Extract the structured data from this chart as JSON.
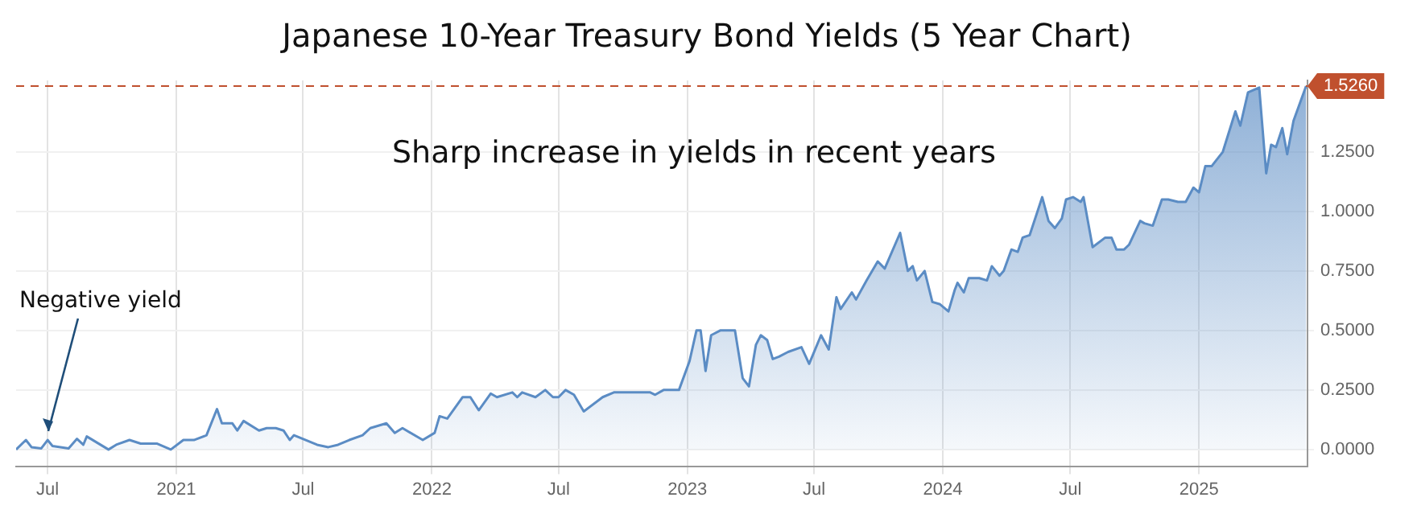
{
  "chart_data": {
    "type": "area",
    "title": "Japanese 10-Year Treasury Bond Yields (5 Year Chart)",
    "annotations": [
      "Sharp increase in yields in recent years",
      {
        "text": "Negative yield",
        "x": "2020-07-01",
        "y": 0.04
      }
    ],
    "x": [
      "2020-05-17",
      "2020-05-31",
      "2020-06-08",
      "2020-06-22",
      "2020-07-01",
      "2020-07-08",
      "2020-07-31",
      "2020-08-12",
      "2020-08-21",
      "2020-08-26",
      "2020-09-26",
      "2020-10-07",
      "2020-10-26",
      "2020-11-11",
      "2020-12-04",
      "2020-12-24",
      "2021-01-11",
      "2021-01-26",
      "2021-02-13",
      "2021-02-28",
      "2021-03-07",
      "2021-03-22",
      "2021-03-29",
      "2021-04-07",
      "2021-04-29",
      "2021-05-10",
      "2021-05-23",
      "2021-06-03",
      "2021-06-12",
      "2021-06-18",
      "2021-07-21",
      "2021-08-06",
      "2021-08-20",
      "2021-09-05",
      "2021-09-24",
      "2021-10-05",
      "2021-10-28",
      "2021-11-09",
      "2021-11-20",
      "2021-12-19",
      "2022-01-05",
      "2022-01-12",
      "2022-01-23",
      "2022-02-14",
      "2022-02-25",
      "2022-03-09",
      "2022-03-26",
      "2022-04-04",
      "2022-04-26",
      "2022-05-03",
      "2022-05-10",
      "2022-05-29",
      "2022-06-12",
      "2022-06-23",
      "2022-07-01",
      "2022-07-11",
      "2022-07-23",
      "2022-08-06",
      "2022-09-02",
      "2022-09-18",
      "2022-10-11",
      "2022-11-09",
      "2022-11-16",
      "2022-11-28",
      "2022-12-20",
      "2023-01-04",
      "2023-01-14",
      "2023-01-20",
      "2023-01-27",
      "2023-02-04",
      "2023-02-17",
      "2023-03-10",
      "2023-03-21",
      "2023-03-30",
      "2023-04-09",
      "2023-04-16",
      "2023-04-25",
      "2023-05-03",
      "2023-05-12",
      "2023-05-25",
      "2023-06-13",
      "2023-06-24",
      "2023-07-11",
      "2023-07-22",
      "2023-08-02",
      "2023-08-08",
      "2023-08-24",
      "2023-08-30",
      "2023-09-14",
      "2023-09-30",
      "2023-10-10",
      "2023-11-01",
      "2023-11-12",
      "2023-11-19",
      "2023-11-25",
      "2023-12-06",
      "2023-12-17",
      "2023-12-28",
      "2024-01-09",
      "2024-01-18",
      "2024-01-22",
      "2024-01-31",
      "2024-02-07",
      "2024-02-22",
      "2024-03-04",
      "2024-03-11",
      "2024-03-22",
      "2024-03-28",
      "2024-04-08",
      "2024-04-17",
      "2024-04-24",
      "2024-05-04",
      "2024-05-22",
      "2024-05-31",
      "2024-06-09",
      "2024-06-19",
      "2024-06-25",
      "2024-07-05",
      "2024-07-16",
      "2024-07-20",
      "2024-08-02",
      "2024-08-20",
      "2024-08-29",
      "2024-09-05",
      "2024-09-16",
      "2024-09-23",
      "2024-10-09",
      "2024-10-15",
      "2024-10-27",
      "2024-11-09",
      "2024-11-18",
      "2024-12-02",
      "2024-12-13",
      "2024-12-24",
      "2025-01-01",
      "2025-01-10",
      "2025-01-19",
      "2025-02-04",
      "2025-02-22",
      "2025-03-01",
      "2025-03-12",
      "2025-03-28",
      "2025-04-07",
      "2025-04-14",
      "2025-04-21",
      "2025-04-30",
      "2025-05-07",
      "2025-05-16",
      "2025-06-03"
    ],
    "series": [
      {
        "color": "#5b8cc4",
        "values": [
          0,
          0.04,
          0.01,
          0.005,
          0.04,
          0.015,
          0.005,
          0.045,
          0.02,
          0.055,
          0,
          0.02,
          0.04,
          0.025,
          0.025,
          0,
          0.04,
          0.04,
          0.06,
          0.17,
          0.11,
          0.11,
          0.08,
          0.12,
          0.08,
          0.09,
          0.09,
          0.08,
          0.04,
          0.06,
          0.02,
          0.01,
          0.02,
          0.04,
          0.06,
          0.09,
          0.11,
          0.07,
          0.09,
          0.04,
          0.07,
          0.14,
          0.13,
          0.22,
          0.22,
          0.165,
          0.235,
          0.22,
          0.24,
          0.22,
          0.24,
          0.22,
          0.25,
          0.22,
          0.22,
          0.25,
          0.23,
          0.16,
          0.22,
          0.24,
          0.24,
          0.24,
          0.23,
          0.25,
          0.25,
          0.37,
          0.5,
          0.5,
          0.33,
          0.48,
          0.5,
          0.5,
          0.3,
          0.265,
          0.44,
          0.48,
          0.46,
          0.38,
          0.39,
          0.41,
          0.43,
          0.36,
          0.48,
          0.42,
          0.64,
          0.59,
          0.66,
          0.63,
          0.71,
          0.79,
          0.76,
          0.91,
          0.75,
          0.77,
          0.71,
          0.75,
          0.62,
          0.61,
          0.58,
          0.67,
          0.7,
          0.66,
          0.72,
          0.72,
          0.71,
          0.77,
          0.73,
          0.75,
          0.84,
          0.83,
          0.89,
          0.9,
          1.06,
          0.96,
          0.93,
          0.97,
          1.05,
          1.06,
          1.04,
          1.06,
          0.85,
          0.89,
          0.89,
          0.84,
          0.84,
          0.86,
          0.96,
          0.95,
          0.94,
          1.05,
          1.05,
          1.04,
          1.04,
          1.1,
          1.08,
          1.19,
          1.19,
          1.25,
          1.42,
          1.36,
          1.5,
          1.52,
          1.16,
          1.28,
          1.27,
          1.35,
          1.24,
          1.38,
          1.526
        ]
      }
    ],
    "xlim": [
      "2020-05-17",
      "2025-06-05"
    ],
    "xticks": [
      {
        "value": "2020-07-01",
        "label": "Jul"
      },
      {
        "value": "2021-01-01",
        "label": "2021"
      },
      {
        "value": "2021-07-01",
        "label": "Jul"
      },
      {
        "value": "2022-01-01",
        "label": "2022"
      },
      {
        "value": "2022-07-01",
        "label": "Jul"
      },
      {
        "value": "2023-01-01",
        "label": "2023"
      },
      {
        "value": "2023-07-01",
        "label": "Jul"
      },
      {
        "value": "2024-01-01",
        "label": "2024"
      },
      {
        "value": "2024-07-01",
        "label": "Jul"
      },
      {
        "value": "2025-01-01",
        "label": "2025"
      }
    ],
    "ylim": [
      -0.07,
      1.55
    ],
    "yticks": [
      {
        "value": 0,
        "label": "0.0000"
      },
      {
        "value": 0.25,
        "label": "0.2500"
      },
      {
        "value": 0.5,
        "label": "0.5000"
      },
      {
        "value": 0.75,
        "label": "0.7500"
      },
      {
        "value": 1,
        "label": "1.0000"
      },
      {
        "value": 1.25,
        "label": "1.2500"
      }
    ],
    "ref_lines": [
      {
        "axis": "y",
        "value": 1.526,
        "label": "1.5260",
        "color": "#c0502e",
        "line_style": "dashed"
      }
    ],
    "grid": true,
    "legend": false,
    "marker": "none",
    "line_style": "solid"
  }
}
